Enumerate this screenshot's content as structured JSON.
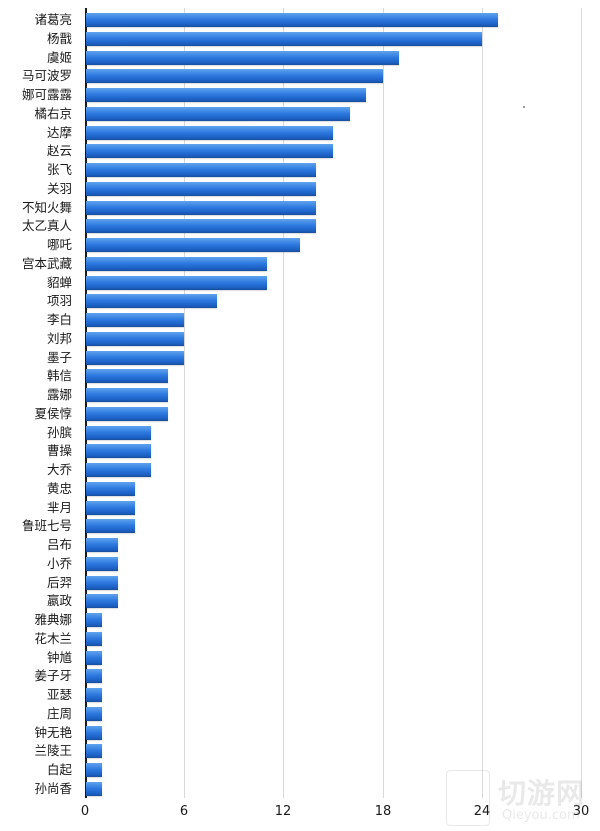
{
  "chart_data": {
    "type": "bar",
    "orientation": "horizontal",
    "title": "",
    "xlabel": "",
    "ylabel": "",
    "xlim": [
      0,
      30
    ],
    "x_ticks": [
      0,
      6,
      12,
      18,
      24,
      30
    ],
    "grid": true,
    "legend": null,
    "bar_color": "#2e7ae0",
    "categories": [
      "诸葛亮",
      "杨戬",
      "虞姬",
      "马可波罗",
      "娜可露露",
      "橘右京",
      "达摩",
      "赵云",
      "张飞",
      "关羽",
      "不知火舞",
      "太乙真人",
      "哪吒",
      "宫本武藏",
      "貂蝉",
      "项羽",
      "李白",
      "刘邦",
      "墨子",
      "韩信",
      "露娜",
      "夏侯惇",
      "孙膑",
      "曹操",
      "大乔",
      "黄忠",
      "芈月",
      "鲁班七号",
      "吕布",
      "小乔",
      "后羿",
      "嬴政",
      "雅典娜",
      "花木兰",
      "钟馗",
      "姜子牙",
      "亚瑟",
      "庄周",
      "钟无艳",
      "兰陵王",
      "白起",
      "孙尚香"
    ],
    "values": [
      25,
      24,
      19,
      18,
      17,
      16,
      15,
      15,
      14,
      14,
      14,
      14,
      13,
      11,
      11,
      8,
      6,
      6,
      6,
      5,
      5,
      5,
      4,
      4,
      4,
      3,
      3,
      3,
      2,
      2,
      2,
      2,
      1,
      1,
      1,
      1,
      1,
      1,
      1,
      1,
      1,
      1
    ]
  },
  "watermark": {
    "text": "切游网",
    "sub": "Qieyou.com"
  }
}
